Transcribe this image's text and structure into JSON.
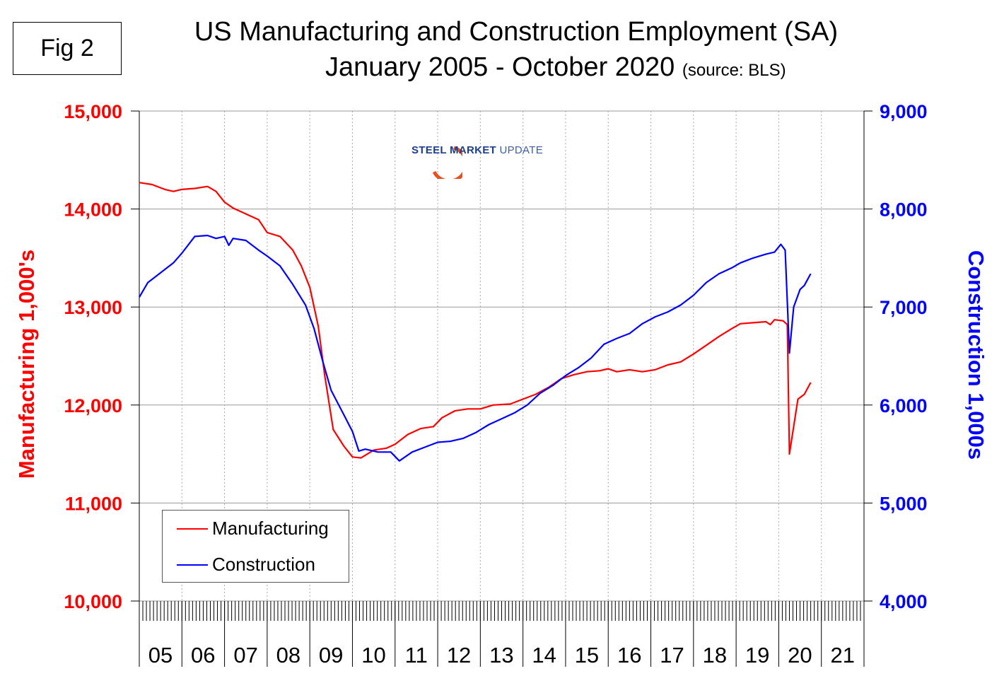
{
  "figure_label": "Fig 2",
  "logo_text": {
    "a": "STEEL MARKET",
    "b": "UPDATE"
  },
  "chart_data": {
    "type": "line",
    "title": "US Manufacturing and Construction Employment (SA)",
    "subtitle": "January 2005 - October 2020",
    "source": "(source: BLS)",
    "ylabel_left": "Manufacturing  1,000's",
    "ylabel_right": "Construction 1,000s",
    "ylim_left": [
      10000,
      15000
    ],
    "ylim_right": [
      4000,
      9000
    ],
    "yticks_left": [
      "10,000",
      "11,000",
      "12,000",
      "13,000",
      "14,000",
      "15,000"
    ],
    "yticks_right": [
      "4,000",
      "5,000",
      "6,000",
      "7,000",
      "8,000",
      "9,000"
    ],
    "xlim": [
      2005,
      2022
    ],
    "xtick_labels": [
      "05",
      "06",
      "07",
      "08",
      "09",
      "10",
      "11",
      "12",
      "13",
      "14",
      "15",
      "16",
      "17",
      "18",
      "19",
      "20",
      "21"
    ],
    "grid": true,
    "legend_position": "bottom-left",
    "colors": {
      "manufacturing": "#ff0000",
      "construction": "#0000ff",
      "left_axis": "#ff0000",
      "right_axis": "#0000ff"
    },
    "series": [
      {
        "name": "Manufacturing",
        "axis": "left",
        "points": [
          [
            2005.0,
            14270
          ],
          [
            2005.3,
            14250
          ],
          [
            2005.6,
            14200
          ],
          [
            2005.8,
            14180
          ],
          [
            2006.0,
            14200
          ],
          [
            2006.3,
            14210
          ],
          [
            2006.6,
            14230
          ],
          [
            2006.8,
            14180
          ],
          [
            2007.0,
            14070
          ],
          [
            2007.2,
            14010
          ],
          [
            2007.5,
            13950
          ],
          [
            2007.8,
            13890
          ],
          [
            2008.0,
            13760
          ],
          [
            2008.3,
            13720
          ],
          [
            2008.6,
            13580
          ],
          [
            2008.8,
            13420
          ],
          [
            2009.0,
            13200
          ],
          [
            2009.2,
            12800
          ],
          [
            2009.35,
            12300
          ],
          [
            2009.55,
            11750
          ],
          [
            2009.8,
            11580
          ],
          [
            2010.0,
            11470
          ],
          [
            2010.2,
            11460
          ],
          [
            2010.5,
            11540
          ],
          [
            2010.8,
            11560
          ],
          [
            2011.0,
            11600
          ],
          [
            2011.3,
            11700
          ],
          [
            2011.6,
            11760
          ],
          [
            2011.9,
            11780
          ],
          [
            2012.1,
            11870
          ],
          [
            2012.4,
            11940
          ],
          [
            2012.7,
            11960
          ],
          [
            2013.0,
            11960
          ],
          [
            2013.3,
            12000
          ],
          [
            2013.7,
            12010
          ],
          [
            2014.0,
            12060
          ],
          [
            2014.3,
            12110
          ],
          [
            2014.6,
            12180
          ],
          [
            2014.9,
            12270
          ],
          [
            2015.2,
            12310
          ],
          [
            2015.5,
            12340
          ],
          [
            2015.8,
            12350
          ],
          [
            2016.0,
            12370
          ],
          [
            2016.2,
            12340
          ],
          [
            2016.5,
            12360
          ],
          [
            2016.8,
            12340
          ],
          [
            2017.1,
            12360
          ],
          [
            2017.4,
            12410
          ],
          [
            2017.7,
            12440
          ],
          [
            2018.0,
            12520
          ],
          [
            2018.3,
            12610
          ],
          [
            2018.6,
            12700
          ],
          [
            2018.9,
            12780
          ],
          [
            2019.1,
            12830
          ],
          [
            2019.4,
            12840
          ],
          [
            2019.7,
            12850
          ],
          [
            2019.8,
            12820
          ],
          [
            2019.9,
            12870
          ],
          [
            2020.1,
            12860
          ],
          [
            2020.2,
            12820
          ],
          [
            2020.25,
            11500
          ],
          [
            2020.45,
            12060
          ],
          [
            2020.6,
            12110
          ],
          [
            2020.75,
            12230
          ]
        ]
      },
      {
        "name": "Construction",
        "axis": "right",
        "points": [
          [
            2005.0,
            7100
          ],
          [
            2005.2,
            7250
          ],
          [
            2005.5,
            7350
          ],
          [
            2005.8,
            7450
          ],
          [
            2006.0,
            7550
          ],
          [
            2006.3,
            7720
          ],
          [
            2006.6,
            7730
          ],
          [
            2006.8,
            7700
          ],
          [
            2007.0,
            7720
          ],
          [
            2007.1,
            7630
          ],
          [
            2007.2,
            7700
          ],
          [
            2007.5,
            7680
          ],
          [
            2007.8,
            7580
          ],
          [
            2008.0,
            7520
          ],
          [
            2008.3,
            7420
          ],
          [
            2008.6,
            7230
          ],
          [
            2008.9,
            7020
          ],
          [
            2009.1,
            6780
          ],
          [
            2009.3,
            6450
          ],
          [
            2009.5,
            6150
          ],
          [
            2009.8,
            5900
          ],
          [
            2010.0,
            5730
          ],
          [
            2010.15,
            5530
          ],
          [
            2010.3,
            5550
          ],
          [
            2010.6,
            5520
          ],
          [
            2010.9,
            5520
          ],
          [
            2011.1,
            5430
          ],
          [
            2011.4,
            5520
          ],
          [
            2011.7,
            5570
          ],
          [
            2012.0,
            5620
          ],
          [
            2012.3,
            5630
          ],
          [
            2012.6,
            5660
          ],
          [
            2012.9,
            5720
          ],
          [
            2013.2,
            5800
          ],
          [
            2013.5,
            5860
          ],
          [
            2013.8,
            5920
          ],
          [
            2014.1,
            6000
          ],
          [
            2014.4,
            6120
          ],
          [
            2014.7,
            6200
          ],
          [
            2015.0,
            6300
          ],
          [
            2015.3,
            6380
          ],
          [
            2015.6,
            6480
          ],
          [
            2015.9,
            6620
          ],
          [
            2016.2,
            6680
          ],
          [
            2016.5,
            6730
          ],
          [
            2016.8,
            6830
          ],
          [
            2017.1,
            6900
          ],
          [
            2017.4,
            6950
          ],
          [
            2017.7,
            7020
          ],
          [
            2018.0,
            7120
          ],
          [
            2018.3,
            7250
          ],
          [
            2018.6,
            7340
          ],
          [
            2018.9,
            7400
          ],
          [
            2019.1,
            7450
          ],
          [
            2019.4,
            7500
          ],
          [
            2019.7,
            7540
          ],
          [
            2019.9,
            7560
          ],
          [
            2020.05,
            7640
          ],
          [
            2020.15,
            7580
          ],
          [
            2020.25,
            6530
          ],
          [
            2020.35,
            7000
          ],
          [
            2020.5,
            7180
          ],
          [
            2020.6,
            7220
          ],
          [
            2020.75,
            7340
          ]
        ]
      }
    ]
  }
}
